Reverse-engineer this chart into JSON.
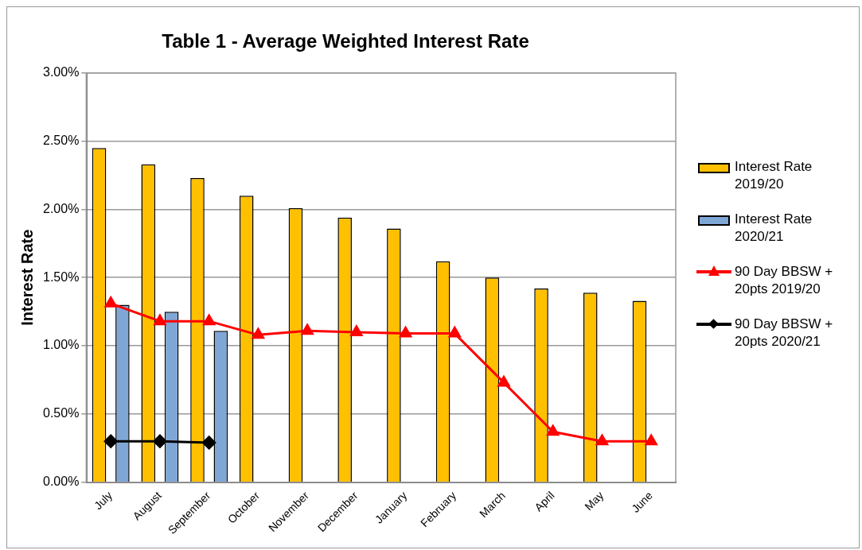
{
  "chart_data": {
    "type": "bar",
    "title": "Table 1 - Average Weighted Interest Rate",
    "ylabel": "Interest Rate",
    "categories": [
      "July",
      "August",
      "September",
      "October",
      "November",
      "December",
      "January",
      "February",
      "March",
      "April",
      "May",
      "June"
    ],
    "series": [
      {
        "name": "Interest Rate 2019/20",
        "color": "#ffc000",
        "values": [
          2.45,
          2.33,
          2.23,
          2.1,
          2.01,
          1.94,
          1.86,
          1.62,
          1.5,
          1.42,
          1.39,
          1.33
        ]
      },
      {
        "name": "Interest Rate 2020/21",
        "color": "#7fa7d6",
        "values": [
          1.3,
          1.25,
          1.11,
          null,
          null,
          null,
          null,
          null,
          null,
          null,
          null,
          null
        ]
      },
      {
        "name": "90 Day BBSW + 20pts 2019/20",
        "type": "line",
        "color": "#ff0000",
        "marker": "triangle",
        "values": [
          1.31,
          1.18,
          1.18,
          1.08,
          1.11,
          1.1,
          1.09,
          1.09,
          0.73,
          0.37,
          0.3,
          0.3
        ]
      },
      {
        "name": "90 Day BBSW + 20pts 2020/21",
        "type": "line",
        "color": "#000000",
        "marker": "diamond",
        "values": [
          0.3,
          0.3,
          0.29,
          null,
          null,
          null,
          null,
          null,
          null,
          null,
          null,
          null
        ]
      }
    ],
    "ylim": [
      0,
      3
    ],
    "yticks": [
      {
        "value": 0,
        "label": "0.00%"
      },
      {
        "value": 0.5,
        "label": "0.50%"
      },
      {
        "value": 1,
        "label": "1.00%"
      },
      {
        "value": 1.5,
        "label": "1.50%"
      },
      {
        "value": 2,
        "label": "2.00%"
      },
      {
        "value": 2.5,
        "label": "2.50%"
      },
      {
        "value": 3,
        "label": "3.00%"
      }
    ],
    "grid": "y",
    "legend": "right"
  }
}
